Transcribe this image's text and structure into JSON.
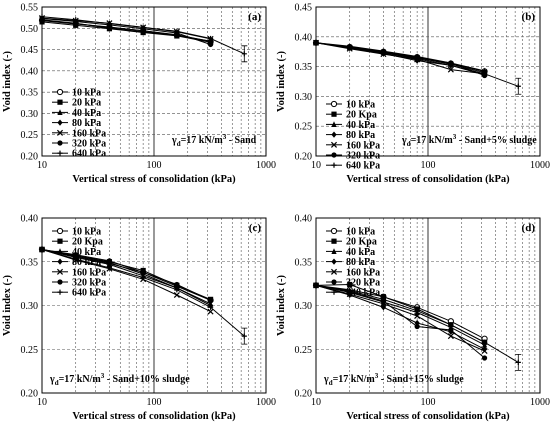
{
  "figure": {
    "panels": [
      {
        "id": "a",
        "label": "(a)",
        "annotation_parts": [
          "γ",
          "d",
          "=17 kN/m",
          "3",
          " - Sand"
        ]
      },
      {
        "id": "b",
        "label": "(b)",
        "annotation_parts": [
          "γ",
          "d",
          "=17 kN/m",
          "3",
          " - Sand+5% sludge"
        ]
      },
      {
        "id": "c",
        "label": "(c)",
        "annotation_parts": [
          "γ",
          "d",
          "=17 kN/m",
          "3",
          " - Sand+10% sludge"
        ]
      },
      {
        "id": "d",
        "label": "(d)",
        "annotation_parts": [
          "γ",
          "d",
          "=17 kN/m",
          "3",
          " - Sand+15% sludge"
        ]
      }
    ]
  },
  "chart_data": [
    {
      "type": "line",
      "panel": "a",
      "xlabel": "Vertical stress of consolidation (kPa)",
      "ylabel": "Void index (-)",
      "xscale": "log",
      "xlim": [
        10,
        1000
      ],
      "ylim": [
        0.2,
        0.55
      ],
      "xticks": [
        "10",
        "100",
        "1000"
      ],
      "yticks": [
        "0.20",
        "0.25",
        "0.30",
        "0.35",
        "0.40",
        "0.45",
        "0.50",
        "0.55"
      ],
      "grid": true,
      "legend": {
        "placement": "middle-left",
        "entries": [
          "10 kPa",
          "20 kPa",
          "40 kPa",
          "80 kPa",
          "160 kPa",
          "320 kPa",
          "640 kPa"
        ]
      },
      "series": [
        {
          "name": "10 kPa",
          "marker": "circle-open",
          "x": [
            10,
            20,
            40,
            80,
            160,
            320
          ],
          "y": [
            0.519,
            0.511,
            0.502,
            0.494,
            0.484,
            0.468
          ]
        },
        {
          "name": "20 kPa",
          "marker": "square",
          "x": [
            10,
            20,
            40,
            80,
            160,
            320
          ],
          "y": [
            0.515,
            0.507,
            0.499,
            0.49,
            0.482,
            0.467
          ]
        },
        {
          "name": "40 kPa",
          "marker": "triangle",
          "x": [
            10,
            20,
            40,
            80,
            160,
            320
          ],
          "y": [
            0.52,
            0.512,
            0.5,
            0.492,
            0.483,
            0.47
          ]
        },
        {
          "name": "80 kPa",
          "marker": "diamond",
          "x": [
            10,
            20,
            40,
            80,
            160,
            320
          ],
          "y": [
            0.518,
            0.51,
            0.503,
            0.494,
            0.485,
            0.469
          ]
        },
        {
          "name": "160 kPa",
          "marker": "x",
          "x": [
            10,
            20,
            40,
            80,
            160,
            320
          ],
          "y": [
            0.524,
            0.518,
            0.512,
            0.502,
            0.492,
            0.475
          ]
        },
        {
          "name": "320 kPa",
          "marker": "circle",
          "x": [
            10,
            20,
            40,
            80,
            160,
            320
          ],
          "y": [
            0.523,
            0.516,
            0.508,
            0.499,
            0.489,
            0.462
          ]
        },
        {
          "name": "640 kPa",
          "marker": "plus",
          "x": [
            10,
            20,
            40,
            80,
            160,
            320,
            640
          ],
          "y": [
            0.527,
            0.52,
            0.511,
            0.502,
            0.493,
            0.476,
            0.44
          ]
        }
      ]
    },
    {
      "type": "line",
      "panel": "b",
      "xlabel": "Vertical stress of consolidation (kPa)",
      "ylabel": "Void index (-)",
      "xscale": "log",
      "xlim": [
        10,
        1000
      ],
      "ylim": [
        0.2,
        0.45
      ],
      "xticks": [
        "10",
        "100",
        "1000"
      ],
      "yticks": [
        "0.20",
        "0.25",
        "0.30",
        "0.35",
        "0.40",
        "0.45"
      ],
      "grid": true,
      "legend": {
        "placement": "middle-left",
        "entries": [
          "10 kPa",
          "20 Kpa",
          "40 kPa",
          "80 kPa",
          "160 kPa",
          "320 kPa",
          "640 kPa"
        ]
      },
      "series": [
        {
          "name": "10 kPa",
          "marker": "circle-open",
          "x": [
            10,
            20,
            40,
            80,
            160,
            320
          ],
          "y": [
            0.39,
            0.383,
            0.375,
            0.366,
            0.355,
            0.342
          ]
        },
        {
          "name": "20 Kpa",
          "marker": "square",
          "x": [
            10,
            20,
            40,
            80,
            160,
            320
          ],
          "y": [
            0.39,
            0.382,
            0.374,
            0.365,
            0.354,
            0.34
          ]
        },
        {
          "name": "40 kPa",
          "marker": "triangle",
          "x": [
            10,
            20,
            40,
            80,
            160,
            320
          ],
          "y": [
            0.39,
            0.384,
            0.376,
            0.367,
            0.356,
            0.343
          ]
        },
        {
          "name": "80 kPa",
          "marker": "diamond",
          "x": [
            10,
            20,
            40,
            80,
            160,
            320
          ],
          "y": [
            0.39,
            0.381,
            0.372,
            0.36,
            0.352,
            0.336
          ]
        },
        {
          "name": "160 kPa",
          "marker": "x",
          "x": [
            10,
            20,
            40,
            80,
            160,
            320
          ],
          "y": [
            0.39,
            0.38,
            0.371,
            0.362,
            0.345,
            0.338
          ]
        },
        {
          "name": "320 kPa",
          "marker": "circle",
          "x": [
            10,
            20,
            40,
            80,
            160,
            320
          ],
          "y": [
            0.39,
            0.382,
            0.374,
            0.364,
            0.356,
            0.335
          ]
        },
        {
          "name": "640 kPa",
          "marker": "plus",
          "x": [
            10,
            20,
            40,
            80,
            160,
            320,
            640
          ],
          "y": [
            0.39,
            0.382,
            0.373,
            0.363,
            0.352,
            0.338,
            0.317
          ]
        }
      ]
    },
    {
      "type": "line",
      "panel": "c",
      "xlabel": "Vertical stress of consolidation (kPa)",
      "ylabel": "Void index (-)",
      "xscale": "log",
      "xlim": [
        10,
        1000
      ],
      "ylim": [
        0.2,
        0.4
      ],
      "xticks": [
        "10",
        "100",
        "1000"
      ],
      "yticks": [
        "0.20",
        "0.25",
        "0.30",
        "0.35",
        "0.40"
      ],
      "grid": true,
      "legend": {
        "placement": "top-left",
        "entries": [
          "10 kPa",
          "20 Kpa",
          "40 kPa",
          "80 kPa",
          "160 kPa",
          "320 kPa",
          "640 kPa"
        ]
      },
      "series": [
        {
          "name": "10 kPa",
          "marker": "circle-open",
          "x": [
            10,
            20,
            40,
            80,
            160,
            320
          ],
          "y": [
            0.364,
            0.356,
            0.348,
            0.338,
            0.322,
            0.306
          ]
        },
        {
          "name": "20 Kpa",
          "marker": "square",
          "x": [
            10,
            20,
            40,
            80,
            160,
            320
          ],
          "y": [
            0.364,
            0.357,
            0.35,
            0.34,
            0.323,
            0.307
          ]
        },
        {
          "name": "40 kPa",
          "marker": "triangle",
          "x": [
            10,
            20,
            40,
            80,
            160,
            320
          ],
          "y": [
            0.364,
            0.355,
            0.347,
            0.334,
            0.32,
            0.302
          ]
        },
        {
          "name": "80 kPa",
          "marker": "diamond",
          "x": [
            10,
            20,
            40,
            80,
            160,
            320
          ],
          "y": [
            0.364,
            0.357,
            0.349,
            0.336,
            0.32,
            0.3
          ]
        },
        {
          "name": "160 kPa",
          "marker": "x",
          "x": [
            10,
            20,
            40,
            80,
            160,
            320
          ],
          "y": [
            0.364,
            0.352,
            0.342,
            0.33,
            0.312,
            0.293
          ]
        },
        {
          "name": "320 kPa",
          "marker": "circle",
          "x": [
            10,
            20,
            40,
            80,
            160,
            320
          ],
          "y": [
            0.364,
            0.358,
            0.351,
            0.338,
            0.324,
            0.306
          ]
        },
        {
          "name": "640 kPa",
          "marker": "plus",
          "x": [
            10,
            20,
            40,
            80,
            160,
            320,
            640
          ],
          "y": [
            0.364,
            0.353,
            0.343,
            0.332,
            0.318,
            0.298,
            0.265
          ]
        }
      ]
    },
    {
      "type": "line",
      "panel": "d",
      "xlabel": "Vertical stress of consolidation (kPa)",
      "ylabel": "Void index (-)",
      "xscale": "log",
      "xlim": [
        10,
        1000
      ],
      "ylim": [
        0.2,
        0.4
      ],
      "xticks": [
        "10",
        "100",
        "1000"
      ],
      "yticks": [
        "0.20",
        "0.25",
        "0.30",
        "0.35",
        "0.40"
      ],
      "grid": true,
      "legend": {
        "placement": "top-left",
        "entries": [
          "10 kPa",
          "20 Kpa",
          "40 kPa",
          "80 kPa",
          "160 kPa",
          "320 kPa",
          "640 kPa"
        ]
      },
      "series": [
        {
          "name": "10 kPa",
          "marker": "circle-open",
          "x": [
            10,
            20,
            40,
            80,
            160,
            320
          ],
          "y": [
            0.323,
            0.318,
            0.31,
            0.298,
            0.282,
            0.262
          ]
        },
        {
          "name": "20 Kpa",
          "marker": "square",
          "x": [
            10,
            20,
            40,
            80,
            160,
            320
          ],
          "y": [
            0.323,
            0.324,
            0.31,
            0.296,
            0.278,
            0.258
          ]
        },
        {
          "name": "40 kPa",
          "marker": "triangle",
          "x": [
            10,
            20,
            40,
            80,
            160,
            320
          ],
          "y": [
            0.323,
            0.315,
            0.304,
            0.292,
            0.275,
            0.255
          ]
        },
        {
          "name": "80 kPa",
          "marker": "diamond",
          "x": [
            10,
            20,
            40,
            80,
            160,
            320
          ],
          "y": [
            0.323,
            0.312,
            0.298,
            0.28,
            0.27,
            0.25
          ]
        },
        {
          "name": "160 kPa",
          "marker": "x",
          "x": [
            10,
            20,
            40,
            80,
            160,
            320
          ],
          "y": [
            0.323,
            0.313,
            0.302,
            0.288,
            0.265,
            0.248
          ]
        },
        {
          "name": "320 kPa",
          "marker": "circle",
          "x": [
            10,
            20,
            40,
            80,
            160,
            320
          ],
          "y": [
            0.323,
            0.316,
            0.305,
            0.276,
            0.272,
            0.24
          ]
        },
        {
          "name": "640 kPa",
          "marker": "plus",
          "x": [
            10,
            20,
            40,
            80,
            160,
            320,
            640
          ],
          "y": [
            0.323,
            0.317,
            0.307,
            0.294,
            0.278,
            0.258,
            0.235
          ]
        }
      ]
    }
  ]
}
